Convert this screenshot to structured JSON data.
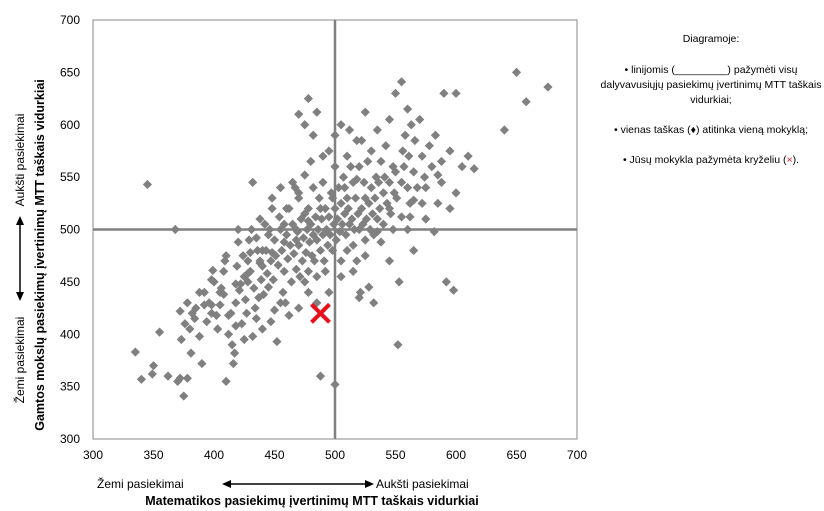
{
  "chart_data": {
    "type": "scatter",
    "xlim": [
      300,
      700
    ],
    "ylim": [
      300,
      700
    ],
    "xticks": [
      300,
      350,
      400,
      450,
      500,
      550,
      600,
      650,
      700
    ],
    "yticks": [
      300,
      350,
      400,
      450,
      500,
      550,
      600,
      650,
      700
    ],
    "grid": false,
    "reference_lines": {
      "x": 500,
      "y": 500
    },
    "x_axis_low": "Žemi pasiekimai",
    "x_axis_high": "Aukšti pasiekimai",
    "xlabel": "Matematikos pasiekimų įvertinimų MTT taškais vidurkiai",
    "y_axis_low": "Žemi pasiekimai",
    "y_axis_high": "Aukšti pasiekimai",
    "ylabel": "Gamtos mokslų pasiekimų įvertinimų MTT taškais vidurkiai",
    "colors": {
      "points": "#808080",
      "school_marker": "#e8111b",
      "lines": "#808080"
    },
    "school": {
      "x": 488,
      "y": 420
    },
    "points": [
      [
        335,
        383
      ],
      [
        340,
        357
      ],
      [
        345,
        543
      ],
      [
        349,
        362
      ],
      [
        350,
        370
      ],
      [
        355,
        402
      ],
      [
        362,
        360
      ],
      [
        368,
        500
      ],
      [
        370,
        355
      ],
      [
        372,
        358
      ],
      [
        373,
        395
      ],
      [
        375,
        341
      ],
      [
        378,
        430
      ],
      [
        378,
        358
      ],
      [
        380,
        405
      ],
      [
        381,
        382
      ],
      [
        384,
        415
      ],
      [
        385,
        425
      ],
      [
        388,
        398
      ],
      [
        390,
        372
      ],
      [
        392,
        440
      ],
      [
        394,
        412
      ],
      [
        396,
        430
      ],
      [
        398,
        452
      ],
      [
        399,
        461
      ],
      [
        400,
        450
      ],
      [
        402,
        418
      ],
      [
        403,
        405
      ],
      [
        405,
        428
      ],
      [
        406,
        444
      ],
      [
        408,
        460
      ],
      [
        409,
        470
      ],
      [
        410,
        355
      ],
      [
        412,
        400
      ],
      [
        414,
        420
      ],
      [
        415,
        390
      ],
      [
        416,
        372
      ],
      [
        417,
        382
      ],
      [
        418,
        430
      ],
      [
        419,
        465
      ],
      [
        420,
        488
      ],
      [
        421,
        442
      ],
      [
        422,
        448
      ],
      [
        423,
        410
      ],
      [
        424,
        475
      ],
      [
        425,
        455
      ],
      [
        426,
        433
      ],
      [
        427,
        420
      ],
      [
        428,
        470
      ],
      [
        429,
        490
      ],
      [
        430,
        460
      ],
      [
        431,
        500
      ],
      [
        432,
        545
      ],
      [
        433,
        444
      ],
      [
        434,
        425
      ],
      [
        435,
        415
      ],
      [
        436,
        480
      ],
      [
        437,
        435
      ],
      [
        438,
        470
      ],
      [
        439,
        452
      ],
      [
        440,
        465
      ],
      [
        441,
        438
      ],
      [
        442,
        505
      ],
      [
        443,
        480
      ],
      [
        444,
        458
      ],
      [
        445,
        445
      ],
      [
        446,
        500
      ],
      [
        447,
        470
      ],
      [
        448,
        530
      ],
      [
        449,
        452
      ],
      [
        450,
        490
      ],
      [
        450,
        423
      ],
      [
        451,
        475
      ],
      [
        452,
        393
      ],
      [
        453,
        466
      ],
      [
        454,
        512
      ],
      [
        455,
        500
      ],
      [
        456,
        480
      ],
      [
        457,
        440
      ],
      [
        458,
        460
      ],
      [
        459,
        430
      ],
      [
        460,
        495
      ],
      [
        461,
        472
      ],
      [
        462,
        520
      ],
      [
        463,
        485
      ],
      [
        464,
        450
      ],
      [
        465,
        505
      ],
      [
        466,
        477
      ],
      [
        467,
        540
      ],
      [
        468,
        462
      ],
      [
        469,
        498
      ],
      [
        470,
        485
      ],
      [
        470,
        530
      ],
      [
        471,
        455
      ],
      [
        472,
        510
      ],
      [
        473,
        470
      ],
      [
        474,
        492
      ],
      [
        475,
        515
      ],
      [
        475,
        450
      ],
      [
        476,
        478
      ],
      [
        477,
        500
      ],
      [
        478,
        520
      ],
      [
        478,
        460
      ],
      [
        479,
        488
      ],
      [
        480,
        565
      ],
      [
        480,
        505
      ],
      [
        481,
        475
      ],
      [
        482,
        495
      ],
      [
        482,
        540
      ],
      [
        483,
        470
      ],
      [
        484,
        512
      ],
      [
        485,
        490
      ],
      [
        485,
        455
      ],
      [
        486,
        500
      ],
      [
        487,
        530
      ],
      [
        488,
        480
      ],
      [
        488,
        360
      ],
      [
        489,
        510
      ],
      [
        490,
        495
      ],
      [
        490,
        545
      ],
      [
        491,
        470
      ],
      [
        492,
        520
      ],
      [
        493,
        500
      ],
      [
        494,
        485
      ],
      [
        495,
        575
      ],
      [
        495,
        512
      ],
      [
        496,
        495
      ],
      [
        497,
        535
      ],
      [
        498,
        480
      ],
      [
        499,
        505
      ],
      [
        500,
        352
      ],
      [
        500,
        520
      ],
      [
        501,
        490
      ],
      [
        502,
        510
      ],
      [
        503,
        540
      ],
      [
        504,
        498
      ],
      [
        505,
        525
      ],
      [
        505,
        470
      ],
      [
        506,
        505
      ],
      [
        507,
        550
      ],
      [
        508,
        515
      ],
      [
        509,
        495
      ],
      [
        510,
        530
      ],
      [
        510,
        480
      ],
      [
        511,
        520
      ],
      [
        512,
        505
      ],
      [
        513,
        560
      ],
      [
        514,
        510
      ],
      [
        515,
        485
      ],
      [
        515,
        545
      ],
      [
        516,
        500
      ],
      [
        517,
        530
      ],
      [
        518,
        470
      ],
      [
        519,
        515
      ],
      [
        520,
        500
      ],
      [
        520,
        560
      ],
      [
        521,
        440
      ],
      [
        522,
        520
      ],
      [
        523,
        505
      ],
      [
        524,
        545
      ],
      [
        525,
        530
      ],
      [
        525,
        490
      ],
      [
        526,
        510
      ],
      [
        527,
        565
      ],
      [
        528,
        525
      ],
      [
        529,
        500
      ],
      [
        530,
        540
      ],
      [
        530,
        575
      ],
      [
        531,
        515
      ],
      [
        532,
        495
      ],
      [
        533,
        530
      ],
      [
        534,
        550
      ],
      [
        535,
        510
      ],
      [
        536,
        545
      ],
      [
        537,
        520
      ],
      [
        538,
        565
      ],
      [
        540,
        535
      ],
      [
        540,
        505
      ],
      [
        541,
        550
      ],
      [
        542,
        580
      ],
      [
        543,
        525
      ],
      [
        545,
        545
      ],
      [
        546,
        515
      ],
      [
        548,
        560
      ],
      [
        549,
        535
      ],
      [
        550,
        555
      ],
      [
        551,
        530
      ],
      [
        552,
        390
      ],
      [
        553,
        450
      ],
      [
        555,
        545
      ],
      [
        556,
        575
      ],
      [
        557,
        560
      ],
      [
        558,
        590
      ],
      [
        560,
        540
      ],
      [
        561,
        570
      ],
      [
        562,
        525
      ],
      [
        563,
        600
      ],
      [
        565,
        555
      ],
      [
        566,
        585
      ],
      [
        568,
        540
      ],
      [
        570,
        605
      ],
      [
        572,
        570
      ],
      [
        574,
        550
      ],
      [
        578,
        580
      ],
      [
        580,
        560
      ],
      [
        583,
        590
      ],
      [
        585,
        525
      ],
      [
        588,
        565
      ],
      [
        590,
        630
      ],
      [
        592,
        450
      ],
      [
        595,
        575
      ],
      [
        598,
        442
      ],
      [
        600,
        630
      ],
      [
        605,
        560
      ],
      [
        610,
        570
      ],
      [
        615,
        558
      ],
      [
        640,
        595
      ],
      [
        650,
        650
      ],
      [
        658,
        622
      ],
      [
        676,
        636
      ],
      [
        555,
        641
      ],
      [
        550,
        630
      ],
      [
        525,
        612
      ],
      [
        470,
        535
      ],
      [
        460,
        520
      ],
      [
        455,
        540
      ],
      [
        445,
        495
      ],
      [
        440,
        480
      ],
      [
        435,
        492
      ],
      [
        428,
        450
      ],
      [
        420,
        500
      ],
      [
        410,
        475
      ],
      [
        405,
        440
      ],
      [
        398,
        420
      ],
      [
        392,
        428
      ],
      [
        388,
        440
      ],
      [
        382,
        420
      ],
      [
        376,
        410
      ],
      [
        372,
        422
      ],
      [
        470,
        610
      ],
      [
        475,
        600
      ],
      [
        478,
        625
      ],
      [
        482,
        590
      ],
      [
        500,
        590
      ],
      [
        505,
        600
      ],
      [
        512,
        595
      ],
      [
        518,
        585
      ],
      [
        485,
        612
      ],
      [
        520,
        435
      ],
      [
        528,
        445
      ],
      [
        532,
        430
      ],
      [
        515,
        460
      ],
      [
        505,
        455
      ],
      [
        495,
        440
      ],
      [
        485,
        430
      ],
      [
        478,
        440
      ],
      [
        470,
        425
      ],
      [
        462,
        418
      ],
      [
        455,
        430
      ],
      [
        447,
        412
      ],
      [
        440,
        405
      ],
      [
        432,
        398
      ],
      [
        425,
        395
      ],
      [
        418,
        408
      ],
      [
        412,
        418
      ],
      [
        545,
        470
      ],
      [
        560,
        500
      ],
      [
        565,
        480
      ],
      [
        575,
        510
      ],
      [
        582,
        498
      ],
      [
        595,
        520
      ],
      [
        600,
        535
      ],
      [
        588,
        545
      ],
      [
        572,
        525
      ],
      [
        562,
        512
      ],
      [
        548,
        500
      ],
      [
        538,
        488
      ],
      [
        525,
        475
      ],
      [
        492,
        460
      ],
      [
        468,
        490
      ],
      [
        458,
        505
      ],
      [
        448,
        520
      ],
      [
        438,
        510
      ],
      [
        430,
        478
      ],
      [
        465,
        545
      ],
      [
        475,
        552
      ],
      [
        490,
        570
      ],
      [
        500,
        560
      ],
      [
        510,
        570
      ],
      [
        522,
        585
      ],
      [
        535,
        595
      ],
      [
        545,
        605
      ],
      [
        560,
        615
      ],
      [
        518,
        548
      ],
      [
        508,
        540
      ],
      [
        498,
        530
      ],
      [
        488,
        520
      ],
      [
        478,
        508
      ],
      [
        468,
        500
      ],
      [
        458,
        488
      ],
      [
        448,
        478
      ],
      [
        438,
        468
      ],
      [
        428,
        458
      ],
      [
        418,
        448
      ],
      [
        408,
        438
      ],
      [
        398,
        428
      ],
      [
        535,
        498
      ],
      [
        545,
        520
      ],
      [
        555,
        512
      ],
      [
        565,
        528
      ],
      [
        575,
        540
      ],
      [
        585,
        552
      ]
    ]
  },
  "legend": {
    "title": "Diagramoje:",
    "item_lines": "• linijomis (_________) pažymėti visų dalyvavusiųjų pasiekimų įvertinimų MTT taškais vidurkiai;",
    "item_point": "• vienas taškas (♦) atitinka vieną mokyklą;",
    "item_school_pre": "• Jūsų mokykla pažymėta kryželiu (",
    "item_school_mark": "×",
    "item_school_post": ")."
  }
}
